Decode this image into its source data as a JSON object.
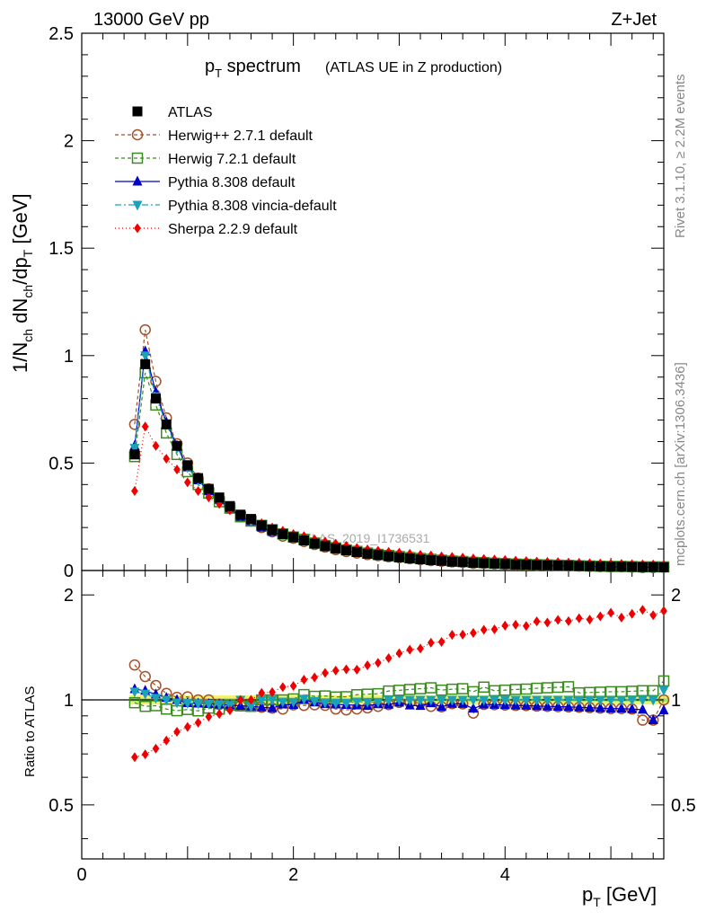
{
  "header": {
    "left": "13000 GeV pp",
    "right": "Z+Jet",
    "title_main": "p",
    "title_sub": "T",
    "title_rest": " spectrum",
    "title_paren": "(ATLAS UE in Z production)",
    "watermark": "ATLAS_2019_I1736531",
    "side_rivet": "Rivet 3.1.10, ≥ 2.2M events",
    "side_mcplots": "mcplots.cern.ch [arXiv:1306.3436]"
  },
  "axes": {
    "ylabel_top": "1/N_ch dN_ch/dp_T [GeV]",
    "ylabel_bottom": "Ratio to ATLAS",
    "xlabel": "p_T [GeV]",
    "xlim": [
      0,
      5.5
    ],
    "ylim_top": [
      0,
      2.5
    ],
    "ylim_bottom": [
      0.35,
      2.35
    ],
    "xticks": [
      "0",
      "2",
      "4"
    ],
    "yticks_top": [
      "0",
      "0.5",
      "1",
      "1.5",
      "2",
      "2.5"
    ],
    "yticks_bottom": [
      "0.5",
      "1",
      "2"
    ]
  },
  "legend": [
    {
      "label": "ATLAS",
      "color": "#000000",
      "marker": "square-filled",
      "dash": "none"
    },
    {
      "label": "Herwig++ 2.7.1 default",
      "color": "#a0522d",
      "marker": "circle-open",
      "dash": "4,3"
    },
    {
      "label": "Herwig 7.2.1 default",
      "color": "#3a8c1e",
      "marker": "square-open",
      "dash": "4,3"
    },
    {
      "label": "Pythia 8.308 default",
      "color": "#0000cc",
      "marker": "triangle-up",
      "dash": "none"
    },
    {
      "label": "Pythia 8.308 vincia-default",
      "color": "#1aa3b8",
      "marker": "triangle-down",
      "dash": "7,3,2,3"
    },
    {
      "label": "Sherpa 2.2.9 default",
      "color": "#ee0000",
      "marker": "diamond",
      "dash": "1,3"
    }
  ],
  "chart_data": {
    "type": "line",
    "x": [
      0.5,
      0.6,
      0.7,
      0.8,
      0.9,
      1.0,
      1.1,
      1.2,
      1.3,
      1.4,
      1.5,
      1.6,
      1.7,
      1.8,
      1.9,
      2.0,
      2.1,
      2.2,
      2.3,
      2.4,
      2.5,
      2.6,
      2.7,
      2.8,
      2.9,
      3.0,
      3.1,
      3.2,
      3.3,
      3.4,
      3.5,
      3.6,
      3.7,
      3.8,
      3.9,
      4.0,
      4.1,
      4.2,
      4.3,
      4.4,
      4.5,
      4.6,
      4.7,
      4.8,
      4.9,
      5.0,
      5.1,
      5.2,
      5.3,
      5.4,
      5.5
    ],
    "series": [
      {
        "name": "ATLAS",
        "values": [
          0.54,
          0.96,
          0.8,
          0.68,
          0.58,
          0.49,
          0.43,
          0.38,
          0.34,
          0.3,
          0.26,
          0.24,
          0.21,
          0.19,
          0.17,
          0.155,
          0.14,
          0.125,
          0.113,
          0.103,
          0.094,
          0.086,
          0.078,
          0.072,
          0.066,
          0.061,
          0.056,
          0.052,
          0.048,
          0.045,
          0.041,
          0.039,
          0.036,
          0.034,
          0.032,
          0.03,
          0.028,
          0.027,
          0.025,
          0.024,
          0.023,
          0.022,
          0.021,
          0.02,
          0.019,
          0.018,
          0.018,
          0.017,
          0.016,
          0.016,
          0.015
        ]
      },
      {
        "name": "Herwig++ 2.7.1 default",
        "values": [
          0.68,
          1.12,
          0.88,
          0.71,
          0.59,
          0.5,
          0.43,
          0.38,
          0.33,
          0.29,
          0.25,
          0.23,
          0.2,
          0.18,
          0.16,
          0.15,
          0.135,
          0.121,
          0.109,
          0.097,
          0.088,
          0.081,
          0.074,
          0.069,
          0.064,
          0.06,
          0.055,
          0.051,
          0.046,
          0.043,
          0.04,
          0.038,
          0.033,
          0.033,
          0.031,
          0.029,
          0.027,
          0.026,
          0.024,
          0.023,
          0.022,
          0.021,
          0.02,
          0.019,
          0.018,
          0.017,
          0.017,
          0.016,
          0.014,
          0.014,
          0.015
        ]
      },
      {
        "name": "Herwig 7.2.1 default",
        "values": [
          0.53,
          0.92,
          0.77,
          0.64,
          0.54,
          0.46,
          0.4,
          0.36,
          0.32,
          0.29,
          0.25,
          0.23,
          0.21,
          0.19,
          0.17,
          0.156,
          0.145,
          0.128,
          0.116,
          0.105,
          0.096,
          0.089,
          0.081,
          0.075,
          0.07,
          0.065,
          0.06,
          0.056,
          0.052,
          0.048,
          0.044,
          0.042,
          0.038,
          0.037,
          0.034,
          0.032,
          0.03,
          0.029,
          0.027,
          0.026,
          0.025,
          0.024,
          0.022,
          0.021,
          0.02,
          0.019,
          0.019,
          0.018,
          0.017,
          0.017,
          0.017
        ]
      },
      {
        "name": "Pythia 8.308 default",
        "values": [
          0.58,
          1.02,
          0.83,
          0.69,
          0.58,
          0.48,
          0.42,
          0.37,
          0.33,
          0.29,
          0.25,
          0.23,
          0.2,
          0.18,
          0.165,
          0.15,
          0.14,
          0.123,
          0.11,
          0.1,
          0.091,
          0.083,
          0.075,
          0.07,
          0.064,
          0.06,
          0.054,
          0.05,
          0.047,
          0.043,
          0.04,
          0.038,
          0.034,
          0.033,
          0.031,
          0.029,
          0.027,
          0.026,
          0.024,
          0.023,
          0.022,
          0.021,
          0.02,
          0.019,
          0.018,
          0.017,
          0.017,
          0.016,
          0.015,
          0.014,
          0.014
        ]
      },
      {
        "name": "Pythia 8.308 vincia-default",
        "values": [
          0.57,
          1.0,
          0.81,
          0.68,
          0.57,
          0.48,
          0.42,
          0.37,
          0.33,
          0.29,
          0.26,
          0.23,
          0.21,
          0.19,
          0.168,
          0.153,
          0.141,
          0.124,
          0.111,
          0.101,
          0.092,
          0.085,
          0.077,
          0.071,
          0.066,
          0.061,
          0.056,
          0.052,
          0.048,
          0.045,
          0.041,
          0.039,
          0.036,
          0.034,
          0.032,
          0.03,
          0.028,
          0.027,
          0.025,
          0.024,
          0.023,
          0.022,
          0.021,
          0.02,
          0.019,
          0.018,
          0.018,
          0.017,
          0.016,
          0.016,
          0.016
        ]
      },
      {
        "name": "Sherpa 2.2.9 default",
        "values": [
          0.37,
          0.67,
          0.58,
          0.52,
          0.47,
          0.41,
          0.37,
          0.34,
          0.31,
          0.28,
          0.26,
          0.24,
          0.22,
          0.2,
          0.185,
          0.17,
          0.16,
          0.145,
          0.135,
          0.125,
          0.115,
          0.105,
          0.098,
          0.092,
          0.087,
          0.083,
          0.078,
          0.073,
          0.07,
          0.066,
          0.063,
          0.06,
          0.056,
          0.054,
          0.051,
          0.049,
          0.046,
          0.044,
          0.042,
          0.04,
          0.039,
          0.037,
          0.036,
          0.034,
          0.033,
          0.032,
          0.031,
          0.03,
          0.029,
          0.028,
          0.027
        ]
      }
    ],
    "ratio_band": {
      "low": 0.97,
      "high": 1.03
    },
    "grid": false,
    "legend_position": "top-left"
  }
}
